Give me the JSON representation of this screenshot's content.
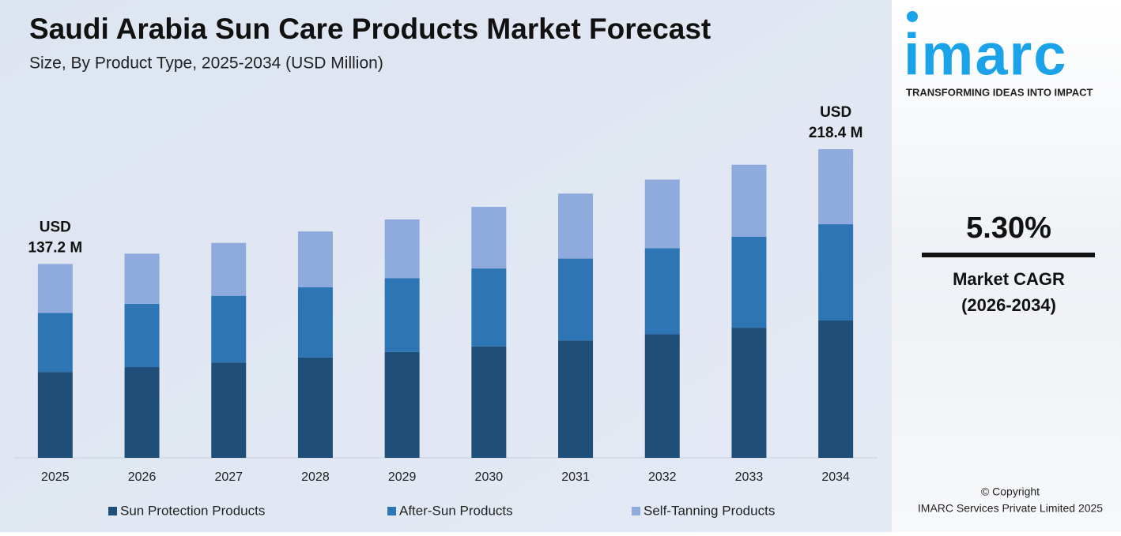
{
  "chart_data": {
    "type": "stacked_bar",
    "title": "Saudi Arabia Sun Care Products Market Forecast",
    "subtitle": "Size, By Product Type, 2025-2034 (USD Million)",
    "categories": [
      "2025",
      "2026",
      "2027",
      "2028",
      "2029",
      "2030",
      "2031",
      "2032",
      "2033",
      "2034"
    ],
    "series": [
      {
        "name": "Sun Protection Products",
        "color": "#1f4e79",
        "values": [
          60.8,
          64.2,
          67.5,
          71.1,
          74.9,
          78.9,
          83.0,
          87.4,
          92.1,
          97.2
        ]
      },
      {
        "name": "After-Sun Products",
        "color": "#2e75b6",
        "values": [
          41.7,
          44.8,
          47.2,
          49.7,
          52.3,
          55.1,
          58.0,
          61.0,
          64.3,
          68.1
        ]
      },
      {
        "name": "Self-Tanning Products",
        "color": "#8faadc",
        "values": [
          34.7,
          35.5,
          37.4,
          39.4,
          41.5,
          43.6,
          46.0,
          48.5,
          51.0,
          53.1
        ]
      }
    ],
    "annotations": [
      {
        "category": "2025",
        "text": [
          "USD",
          "137.2 M"
        ]
      },
      {
        "category": "2034",
        "text": [
          "USD",
          "218.4 M"
        ]
      }
    ]
  },
  "side_panel": {
    "logo": "imarc",
    "tagline": "TRANSFORMING IDEAS INTO IMPACT",
    "cagr": "5.30%",
    "cagr_label": [
      "Market CAGR",
      "(2026-2034)"
    ],
    "copyright": [
      "© Copyright",
      "IMARC Services Private Limited 2025"
    ]
  }
}
